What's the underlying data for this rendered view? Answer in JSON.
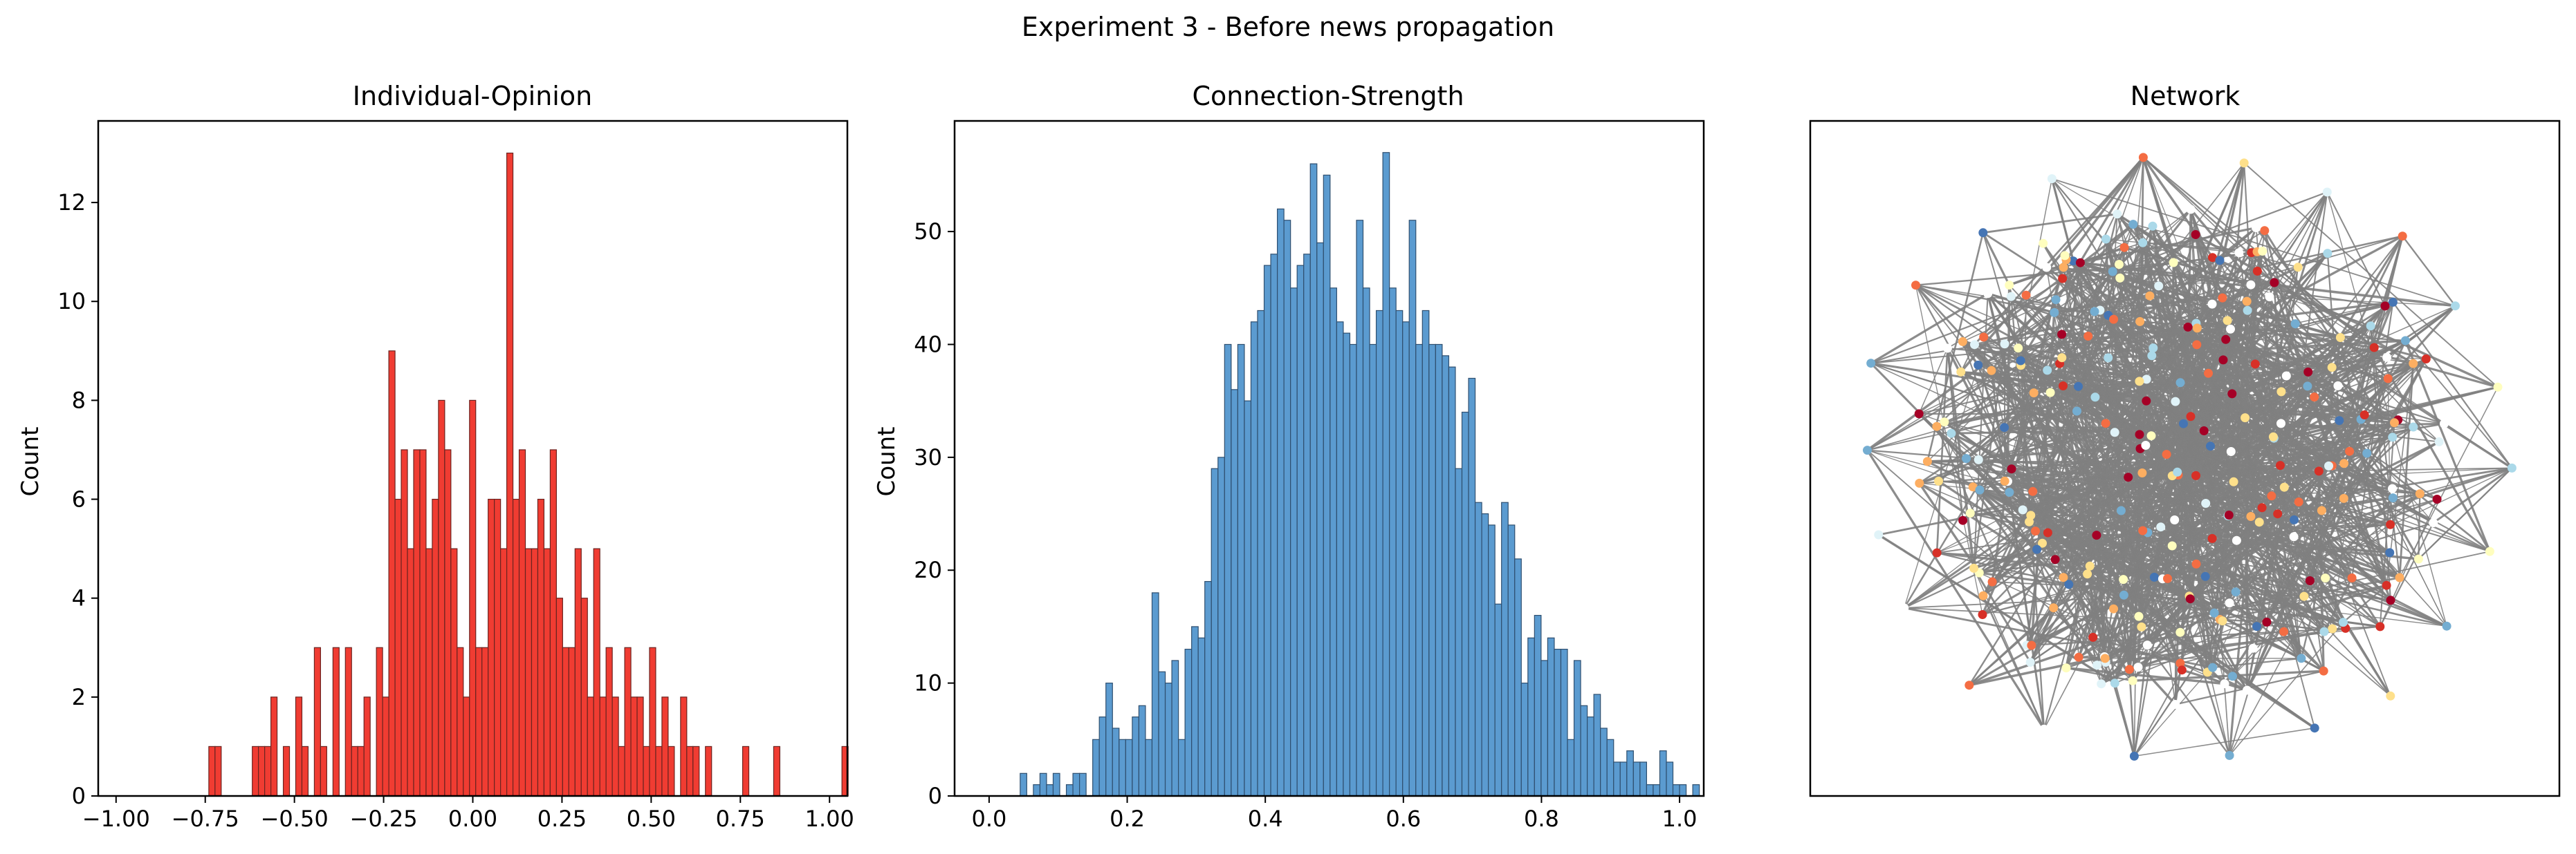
{
  "suptitle": "Experiment 3 - Before news propagation",
  "colors": {
    "opinion_fill": "#f03c32",
    "opinion_edge": "#6b2420",
    "strength_fill": "#5b9bd0",
    "strength_edge": "#2f4f6f",
    "network_edge": "#808080",
    "axes": "#000000"
  },
  "chart_data": [
    {
      "type": "bar",
      "title": "Individual-Opinion",
      "xlabel": "",
      "ylabel": "Count",
      "xlim": [
        -1.05,
        1.05
      ],
      "ylim": [
        0,
        13.65
      ],
      "xticks": [
        -1.0,
        -0.75,
        -0.5,
        -0.25,
        0.0,
        0.25,
        0.5,
        0.75,
        1.0
      ],
      "xtick_labels": [
        "−1.00",
        "−0.75",
        "−0.50",
        "−0.25",
        "0.00",
        "0.25",
        "0.50",
        "0.75",
        "1.00"
      ],
      "yticks": [
        0,
        2,
        4,
        6,
        8,
        10,
        12
      ],
      "ytick_labels": [
        "0",
        "2",
        "4",
        "6",
        "8",
        "10",
        "12"
      ],
      "bin_start": -0.74,
      "bin_width": 0.0174,
      "values": [
        1,
        1,
        0,
        0,
        0,
        0,
        0,
        1,
        1,
        1,
        2,
        0,
        1,
        0,
        2,
        1,
        0,
        3,
        1,
        0,
        3,
        0,
        3,
        1,
        1,
        2,
        0,
        3,
        2,
        9,
        6,
        7,
        5,
        7,
        7,
        5,
        6,
        8,
        7,
        5,
        3,
        2,
        8,
        3,
        3,
        6,
        6,
        5,
        13,
        6,
        7,
        5,
        5,
        6,
        5,
        7,
        4,
        3,
        3,
        5,
        4,
        2,
        5,
        2,
        3,
        2,
        1,
        3,
        2,
        2,
        1,
        3,
        1,
        2,
        1,
        0,
        2,
        1,
        1,
        0,
        1,
        0,
        0,
        0,
        0,
        0,
        1,
        0,
        0,
        0,
        0,
        1,
        0,
        0,
        0,
        0,
        0,
        0,
        0,
        0,
        0,
        0,
        1
      ],
      "series": [
        {
          "name": "Individual-Opinion",
          "color": "#f03c32"
        }
      ]
    },
    {
      "type": "bar",
      "title": "Connection-Strength",
      "xlabel": "",
      "ylabel": "Count",
      "xlim": [
        -0.05,
        1.035
      ],
      "ylim": [
        0,
        59.8
      ],
      "xticks": [
        0.0,
        0.2,
        0.4,
        0.6,
        0.8,
        1.0
      ],
      "xtick_labels": [
        "0.0",
        "0.2",
        "0.4",
        "0.6",
        "0.8",
        "1.0"
      ],
      "yticks": [
        0,
        10,
        20,
        30,
        40,
        50
      ],
      "ytick_labels": [
        "0",
        "10",
        "20",
        "30",
        "40",
        "50"
      ],
      "bin_start": 0.045,
      "bin_width": 0.00955,
      "values": [
        2,
        0,
        1,
        2,
        1,
        2,
        0,
        1,
        2,
        2,
        0,
        5,
        7,
        10,
        6,
        5,
        5,
        7,
        8,
        5,
        18,
        11,
        10,
        12,
        5,
        13,
        15,
        14,
        19,
        29,
        30,
        40,
        36,
        40,
        35,
        42,
        43,
        47,
        48,
        52,
        51,
        45,
        47,
        48,
        56,
        49,
        55,
        45,
        42,
        41,
        40,
        51,
        45,
        40,
        43,
        57,
        45,
        43,
        42,
        51,
        40,
        43,
        40,
        40,
        39,
        38,
        29,
        34,
        37,
        26,
        25,
        24,
        17,
        26,
        24,
        21,
        10,
        14,
        16,
        12,
        14,
        13,
        13,
        5,
        12,
        8,
        7,
        9,
        6,
        5,
        3,
        3,
        4,
        3,
        3,
        1,
        1,
        4,
        3,
        1,
        1,
        0,
        1
      ],
      "series": [
        {
          "name": "Connection-Strength",
          "color": "#5b9bd0"
        }
      ]
    },
    {
      "type": "network",
      "title": "Network",
      "node_count": 300,
      "palette": [
        "#ffffff",
        "#fffebe",
        "#fee08b",
        "#fdae61",
        "#f46d43",
        "#d73027",
        "#a50026",
        "#e0f3f8",
        "#abd9e9",
        "#74add1",
        "#4575b4"
      ]
    }
  ]
}
